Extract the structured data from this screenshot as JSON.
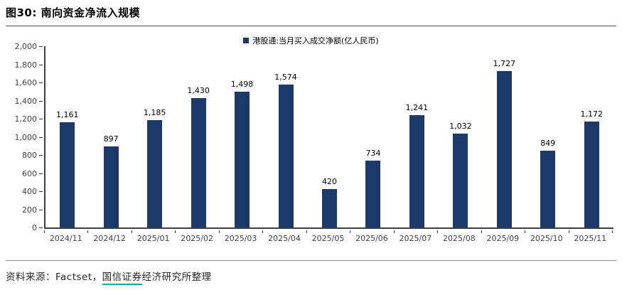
{
  "title": "图30: 南向资金净流入规模",
  "legend": {
    "marker_color": "#1B3A6B",
    "label": "港股通:当月买入成交净额(亿人民币)"
  },
  "chart_data": {
    "type": "bar",
    "title": "图30: 南向资金净流入规模",
    "legend_entries": [
      "港股通:当月买入成交净额(亿人民币)"
    ],
    "legend_position": "top-center",
    "categories": [
      "2024/11",
      "2024/12",
      "2025/01",
      "2025/02",
      "2025/03",
      "2025/04",
      "2025/05",
      "2025/06",
      "2025/07",
      "2025/08",
      "2025/09",
      "2025/10",
      "2025/11"
    ],
    "values": [
      1161,
      897,
      1185,
      1430,
      1498,
      1574,
      420,
      734,
      1241,
      1032,
      1727,
      849,
      1172
    ],
    "value_labels": [
      "1,161",
      "897",
      "1,185",
      "1,430",
      "1,498",
      "1,574",
      "420",
      "734",
      "1,241",
      "1,032",
      "1,727",
      "849",
      "1,172"
    ],
    "xlabel": "",
    "ylabel": "",
    "ylim": [
      0,
      2000
    ],
    "ytick_step": 200,
    "ytick_labels": [
      "0",
      "200",
      "400",
      "600",
      "800",
      "1,000",
      "1,200",
      "1,400",
      "1,600",
      "1,800",
      "2,000"
    ],
    "grid": false,
    "bar_color": "#1B3A6B"
  },
  "footer": {
    "prefix": "资料来源：Factset，",
    "link_text": "国信证券",
    "suffix": "经济研究所整理",
    "link_underline_color": "#00AEC7"
  }
}
